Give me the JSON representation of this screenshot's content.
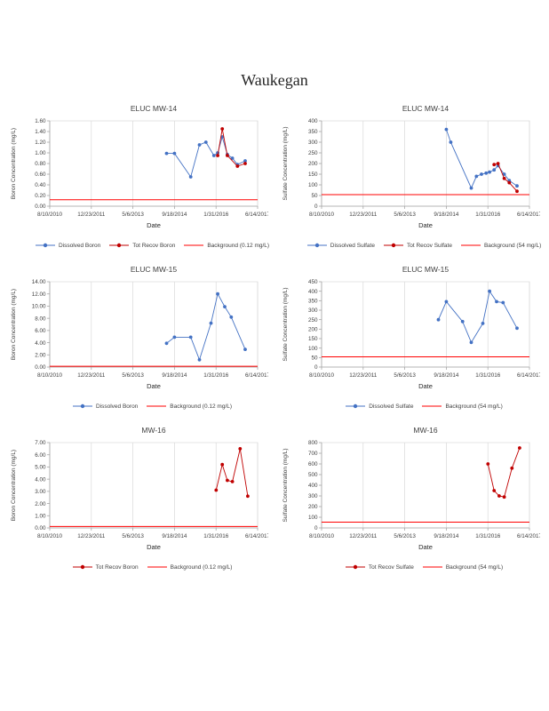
{
  "page_title": "Waukegan",
  "chart_data": {
    "x_ticks": [
      "8/10/2010",
      "12/23/2011",
      "5/6/2013",
      "9/18/2014",
      "1/31/2016",
      "6/14/2017"
    ],
    "charts": [
      {
        "type": "line",
        "title": "ELUC MW-14",
        "ylabel": "Boron Concentration (mg/L)",
        "xlabel": "Date",
        "ylim": [
          0,
          1.6
        ],
        "ystep": 0.2,
        "ydecimals": 2,
        "series": [
          {
            "name": "Dissolved Boron",
            "color": "#4472c4",
            "points": [
              [
                "2014-06-15",
                0.99
              ],
              [
                "2014-09-18",
                0.99
              ],
              [
                "2015-04-01",
                0.55
              ],
              [
                "2015-07-15",
                1.15
              ],
              [
                "2015-10-01",
                1.2
              ],
              [
                "2016-01-05",
                0.95
              ],
              [
                "2016-02-20",
                1.0
              ],
              [
                "2016-04-15",
                1.3
              ],
              [
                "2016-06-15",
                0.97
              ],
              [
                "2016-08-15",
                0.9
              ],
              [
                "2016-10-15",
                0.78
              ],
              [
                "2017-01-15",
                0.85
              ]
            ]
          },
          {
            "name": "Tot Recov Boron",
            "color": "#c00000",
            "points": [
              [
                "2016-02-20",
                0.95
              ],
              [
                "2016-04-15",
                1.45
              ],
              [
                "2016-06-15",
                0.95
              ],
              [
                "2016-10-15",
                0.75
              ],
              [
                "2017-01-15",
                0.8
              ]
            ]
          },
          {
            "name": "Background  (0.12 mg/L)",
            "color": "#ff0000",
            "type": "hline",
            "value": 0.12
          }
        ]
      },
      {
        "type": "line",
        "title": "ELUC MW-14",
        "ylabel": "Sulfate Concentration (mg/L)",
        "xlabel": "Date",
        "ylim": [
          0,
          400
        ],
        "ystep": 50,
        "ydecimals": 0,
        "series": [
          {
            "name": "Dissolved Sulfate",
            "color": "#4472c4",
            "points": [
              [
                "2014-09-18",
                360
              ],
              [
                "2014-11-10",
                300
              ],
              [
                "2015-07-15",
                85
              ],
              [
                "2015-09-15",
                140
              ],
              [
                "2015-11-15",
                150
              ],
              [
                "2016-01-10",
                155
              ],
              [
                "2016-02-20",
                160
              ],
              [
                "2016-04-15",
                170
              ],
              [
                "2016-06-01",
                190
              ],
              [
                "2016-08-15",
                150
              ],
              [
                "2016-10-15",
                120
              ],
              [
                "2017-01-15",
                95
              ]
            ]
          },
          {
            "name": "Tot Recov Sulfate",
            "color": "#c00000",
            "points": [
              [
                "2016-04-15",
                195
              ],
              [
                "2016-06-01",
                200
              ],
              [
                "2016-08-15",
                130
              ],
              [
                "2016-10-15",
                110
              ],
              [
                "2017-01-15",
                70
              ]
            ]
          },
          {
            "name": "Background  (54 mg/L)",
            "color": "#ff0000",
            "type": "hline",
            "value": 54
          }
        ]
      },
      {
        "type": "line",
        "title": "ELUC MW-15",
        "ylabel": "Boron Concentration (mg/L)",
        "xlabel": "Date",
        "ylim": [
          0,
          14
        ],
        "ystep": 2,
        "ydecimals": 2,
        "series": [
          {
            "name": "Dissolved Boron",
            "color": "#4472c4",
            "points": [
              [
                "2014-06-15",
                3.9
              ],
              [
                "2014-09-18",
                4.9
              ],
              [
                "2015-04-01",
                4.9
              ],
              [
                "2015-07-15",
                1.2
              ],
              [
                "2015-12-01",
                7.2
              ],
              [
                "2016-02-20",
                12.0
              ],
              [
                "2016-05-15",
                9.9
              ],
              [
                "2016-08-01",
                8.2
              ],
              [
                "2017-01-15",
                2.9
              ]
            ]
          },
          {
            "name": "Background  (0.12 mg/L)",
            "color": "#ff0000",
            "type": "hline",
            "value": 0.12
          }
        ]
      },
      {
        "type": "line",
        "title": "ELUC MW-15",
        "ylabel": "Sulfate Concentration (mg/L)",
        "xlabel": "Date",
        "ylim": [
          0,
          450
        ],
        "ystep": 50,
        "ydecimals": 0,
        "series": [
          {
            "name": "Dissolved Sulfate",
            "color": "#4472c4",
            "points": [
              [
                "2014-06-15",
                250
              ],
              [
                "2014-09-18",
                345
              ],
              [
                "2015-04-01",
                240
              ],
              [
                "2015-07-15",
                130
              ],
              [
                "2015-12-01",
                230
              ],
              [
                "2016-02-20",
                400
              ],
              [
                "2016-05-15",
                345
              ],
              [
                "2016-08-01",
                340
              ],
              [
                "2017-01-15",
                205
              ]
            ]
          },
          {
            "name": "Background  (54 mg/L)",
            "color": "#ff0000",
            "type": "hline",
            "value": 54
          }
        ]
      },
      {
        "type": "line",
        "title": "MW-16",
        "ylabel": "Boron Concentration (mg/L)",
        "xlabel": "Date",
        "ylim": [
          0,
          7
        ],
        "ystep": 1,
        "ydecimals": 2,
        "series": [
          {
            "name": "Tot Recov Boron",
            "color": "#c00000",
            "points": [
              [
                "2016-02-01",
                3.1
              ],
              [
                "2016-04-15",
                5.2
              ],
              [
                "2016-06-15",
                3.9
              ],
              [
                "2016-08-15",
                3.8
              ],
              [
                "2016-11-15",
                6.5
              ],
              [
                "2017-02-15",
                2.6
              ]
            ]
          },
          {
            "name": "Background  (0.12 mg/L)",
            "color": "#ff0000",
            "type": "hline",
            "value": 0.12
          }
        ]
      },
      {
        "type": "line",
        "title": "MW-16",
        "ylabel": "Sulfate Concentration (mg/L)",
        "xlabel": "Date",
        "ylim": [
          0,
          800
        ],
        "ystep": 100,
        "ydecimals": 0,
        "series": [
          {
            "name": "Tot Recov Sulfate",
            "color": "#c00000",
            "points": [
              [
                "2016-02-01",
                600
              ],
              [
                "2016-04-15",
                350
              ],
              [
                "2016-06-15",
                300
              ],
              [
                "2016-08-15",
                290
              ],
              [
                "2016-11-15",
                560
              ],
              [
                "2017-02-15",
                750
              ]
            ]
          },
          {
            "name": "Background  (54 mg/L)",
            "color": "#ff0000",
            "type": "hline",
            "value": 54
          }
        ]
      }
    ]
  }
}
